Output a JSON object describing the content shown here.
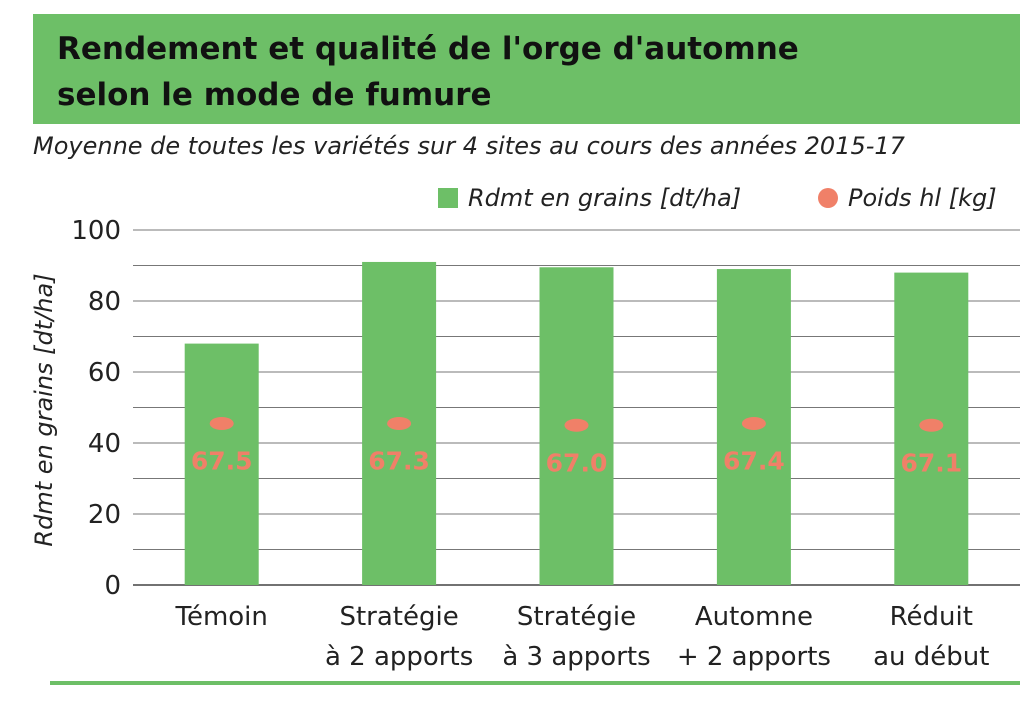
{
  "header": {
    "title_line1": "Rendement et qualité de l'orge d'automne",
    "title_line2": "selon le mode de fumure",
    "subtitle": "Moyenne de toutes les variétés sur 4 sites au cours des années 2015-17"
  },
  "legend": {
    "bar_label": "Rdmt en grains [dt/ha]",
    "dot_label": "Poids hl [kg]"
  },
  "colors": {
    "bar": "#6dbf67",
    "dot": "#f08068",
    "label": "#f08068",
    "grid": "#777777"
  },
  "chart_data": {
    "type": "bar",
    "title": "Rendement et qualité de l'orge d'automne selon le mode de fumure",
    "subtitle": "Moyenne de toutes les variétés sur 4 sites au cours des années 2015-17",
    "xlabel": "",
    "ylabel": "Rdmt en grains [dt/ha]",
    "ylim": [
      0,
      100
    ],
    "yticks": [
      0,
      20,
      40,
      60,
      80,
      100
    ],
    "grid": true,
    "legend_position": "top-right",
    "categories": [
      [
        "Témoin"
      ],
      [
        "Stratégie",
        "à 2 apports"
      ],
      [
        "Stratégie",
        "à 3 apports"
      ],
      [
        "Automne",
        "+ 2 apports"
      ],
      [
        "Réduit",
        "au début"
      ]
    ],
    "series": [
      {
        "name": "Rdmt en grains [dt/ha]",
        "kind": "bar",
        "values": [
          68,
          91,
          89.5,
          89,
          88
        ]
      },
      {
        "name": "Poids hl [kg]",
        "kind": "dot",
        "values": [
          67.5,
          67.3,
          67.0,
          67.4,
          67.1
        ],
        "labels": [
          "67.5",
          "67.3",
          "67.0",
          "67.4",
          "67.1"
        ],
        "marker_level": [
          45.5,
          45.5,
          45,
          45.5,
          45
        ]
      }
    ]
  }
}
